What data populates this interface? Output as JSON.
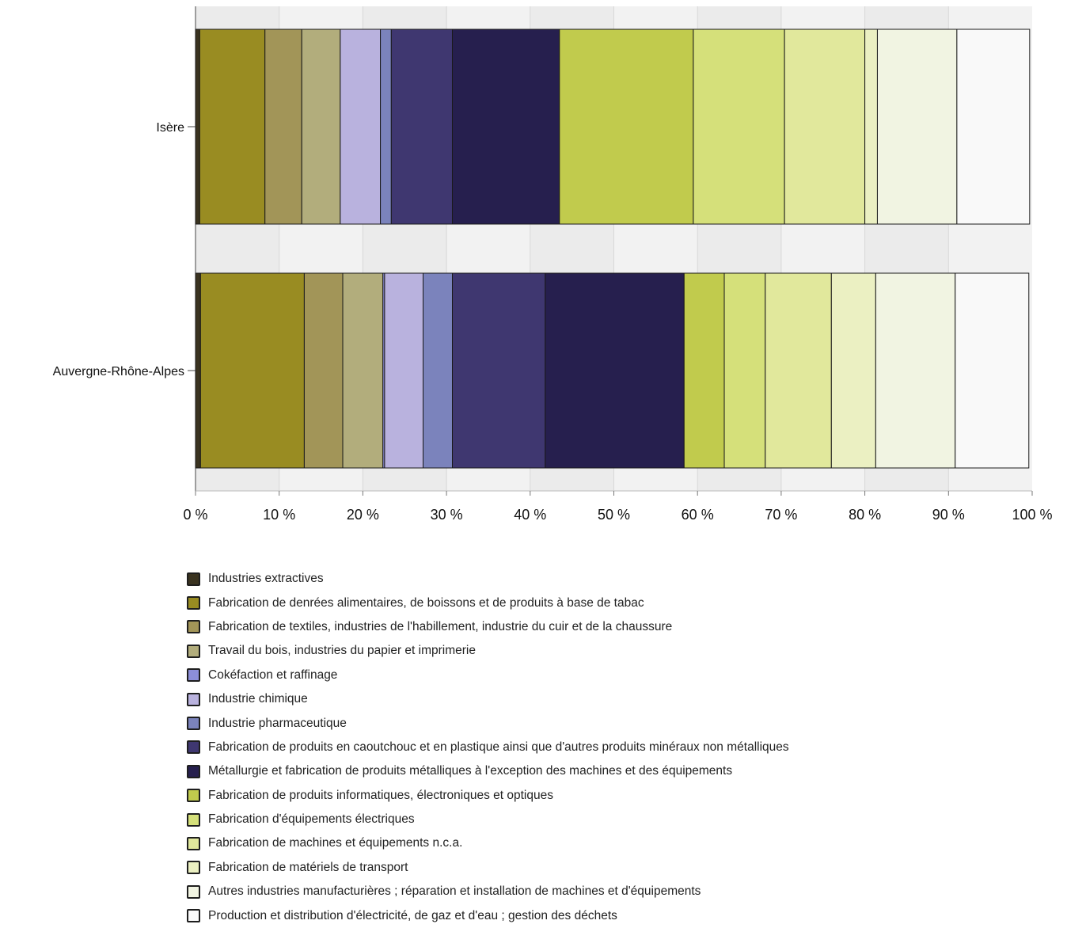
{
  "chart_data": {
    "type": "bar",
    "orientation": "horizontal",
    "stacked": true,
    "normalized_percent": true,
    "categories": [
      "Isère",
      "Auvergne-Rhône-Alpes"
    ],
    "x_ticks": [
      "0 %",
      "10 %",
      "20 %",
      "30 %",
      "40 %",
      "50 %",
      "60 %",
      "70 %",
      "80 %",
      "90 %",
      "100 %"
    ],
    "xlim": [
      0,
      100
    ],
    "grid": true,
    "legend_position": "bottom",
    "series": [
      {
        "name": "Industries extractives",
        "color": "#3a3320",
        "values": [
          0.5,
          0.6
        ]
      },
      {
        "name": "Fabrication de denrées alimentaires, de boissons et de produits à base de tabac",
        "color": "#998c22",
        "values": [
          7.8,
          12.4
        ]
      },
      {
        "name": "Fabrication de textiles, industries de l'habillement, industrie du cuir et de la chaussure",
        "color": "#a29558",
        "values": [
          4.4,
          4.6
        ]
      },
      {
        "name": "Travail du bois, industries du papier et imprimerie",
        "color": "#b2ad7c",
        "values": [
          4.6,
          4.8
        ]
      },
      {
        "name": "Cokéfaction et raffinage",
        "color": "#8c8ed8",
        "values": [
          0.0,
          0.2
        ]
      },
      {
        "name": "Industrie chimique",
        "color": "#b9b2de",
        "values": [
          4.8,
          4.6
        ]
      },
      {
        "name": "Industrie pharmaceutique",
        "color": "#7b83bc",
        "values": [
          1.3,
          3.5
        ]
      },
      {
        "name": "Fabrication de produits en caoutchouc et en plastique ainsi que d'autres produits minéraux non métalliques",
        "color": "#3f3770",
        "values": [
          7.3,
          11.1
        ]
      },
      {
        "name": "Métallurgie et fabrication de produits métalliques à l'exception des machines et des équipements",
        "color": "#261f4e",
        "values": [
          12.8,
          16.6
        ]
      },
      {
        "name": "Fabrication de produits informatiques, électroniques et optiques",
        "color": "#c1cb4d",
        "values": [
          16.0,
          4.8
        ]
      },
      {
        "name": "Fabrication d'équipements électriques",
        "color": "#d5e07a",
        "values": [
          10.9,
          4.9
        ]
      },
      {
        "name": "Fabrication de machines et équipements n.c.a.",
        "color": "#e1e89c",
        "values": [
          9.6,
          7.9
        ]
      },
      {
        "name": "Fabrication de matériels de transport",
        "color": "#ebf0c2",
        "values": [
          1.5,
          5.3
        ]
      },
      {
        "name": "Autres industries manufacturières ; réparation et installation de machines et d'équipements",
        "color": "#f1f4e2",
        "values": [
          9.5,
          9.5
        ]
      },
      {
        "name": "Production et distribution d'électricité, de gaz et d'eau ; gestion des déchets",
        "color": "#f9f9f9",
        "values": [
          8.7,
          8.8
        ]
      }
    ]
  }
}
